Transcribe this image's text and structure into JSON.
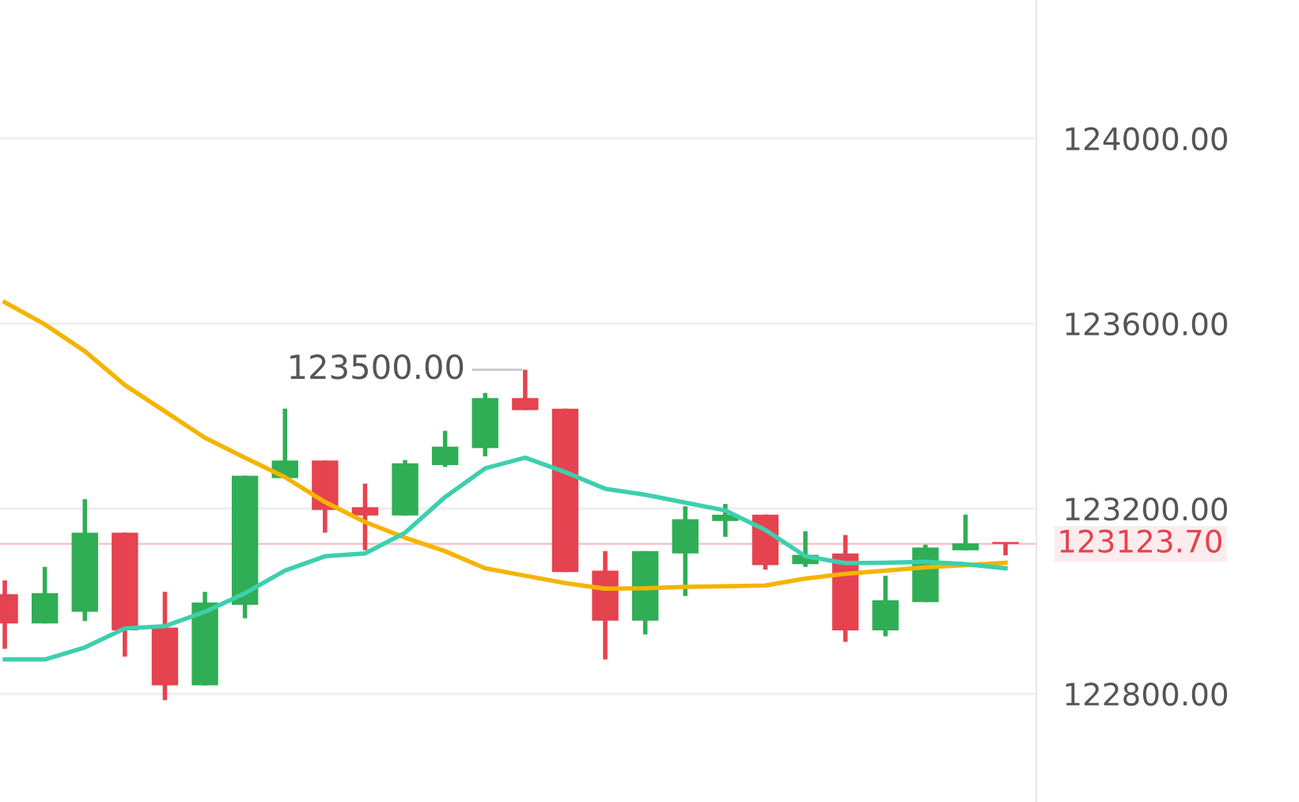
{
  "chart_data": {
    "type": "candlestick",
    "categories": [
      null,
      null,
      null,
      null,
      null,
      null,
      null,
      null,
      null,
      null,
      null,
      null,
      null,
      null,
      null,
      null,
      null,
      null,
      null,
      null,
      null,
      null,
      null,
      null,
      null,
      null
    ],
    "ohlc": [
      [
        123015,
        123045,
        122897,
        122952
      ],
      [
        122952,
        123074,
        122952,
        123017
      ],
      [
        122977,
        123220,
        122957,
        123148
      ],
      [
        123148,
        123148,
        122880,
        122937
      ],
      [
        122943,
        123020,
        122786,
        122818
      ],
      [
        122818,
        123020,
        122818,
        122997
      ],
      [
        122992,
        123271,
        122963,
        123271
      ],
      [
        123266,
        123416,
        123266,
        123304
      ],
      [
        123304,
        123304,
        123148,
        123197
      ],
      [
        123203,
        123254,
        123110,
        123185
      ],
      [
        123185,
        123305,
        123185,
        123298
      ],
      [
        123294,
        123368,
        123290,
        123334
      ],
      [
        123331,
        123450,
        123313,
        123439
      ],
      [
        123439,
        123500,
        123413,
        123413
      ],
      [
        123416,
        123416,
        123063,
        123063
      ],
      [
        123066,
        123108,
        122874,
        122958
      ],
      [
        122958,
        123108,
        122928,
        123108
      ],
      [
        123103,
        123205,
        123011,
        123177
      ],
      [
        123173,
        123210,
        123139,
        123187
      ],
      [
        123187,
        123187,
        123068,
        123078
      ],
      [
        123080,
        123151,
        123074,
        123100
      ],
      [
        123103,
        123143,
        122912,
        122937
      ],
      [
        122937,
        123055,
        122924,
        123002
      ],
      [
        122998,
        123122,
        122998,
        123116
      ],
      [
        123110,
        123187,
        123110,
        123125
      ],
      [
        123126,
        123126,
        123099,
        123123.7
      ]
    ],
    "colors": [
      "#e5434f",
      "#2fae55",
      "#2fae55",
      "#e5434f",
      "#e5434f",
      "#2fae55",
      "#2fae55",
      "#2fae55",
      "#e5434f",
      "#e5434f",
      "#2fae55",
      "#2fae55",
      "#2fae55",
      "#e5434f",
      "#e5434f",
      "#e5434f",
      "#2fae55",
      "#2fae55",
      "#2fae55",
      "#e5434f",
      "#2fae55",
      "#e5434f",
      "#2fae55",
      "#2fae55",
      "#2fae55",
      "#e5434f"
    ],
    "series": [
      {
        "type": "line",
        "color": "#f5b400",
        "values": [
          123646,
          123598,
          123540,
          123467,
          123410,
          123353,
          123310,
          123268,
          123214,
          123171,
          123137,
          123108,
          123071,
          123055,
          123039,
          123027,
          123028,
          123031,
          123032,
          123034,
          123049,
          123059,
          123066,
          123073,
          123078,
          123083
        ]
      },
      {
        "type": "line",
        "color": "#3ecfae",
        "values": [
          122874,
          122874,
          122900,
          122941,
          122946,
          122977,
          123017,
          123066,
          123097,
          123103,
          123148,
          123225,
          123287,
          123310,
          123279,
          123243,
          123230,
          123213,
          123196,
          123154,
          123097,
          123082,
          123083,
          123085,
          123080,
          123071
        ]
      }
    ],
    "ylim": [
      122566,
      124299
    ],
    "yticks": [
      {
        "value": 122800,
        "label": "122800.00"
      },
      {
        "value": 123200,
        "label": "123200.00"
      },
      {
        "value": 123600,
        "label": "123600.00"
      },
      {
        "value": 124000,
        "label": "124000.00"
      }
    ],
    "grid": "y",
    "marker": "none",
    "ref_lines": [
      {
        "axis": "y",
        "value": 123123.7,
        "label": "123123.70",
        "color": "#e5434f"
      }
    ],
    "annotations": [
      "123500.00"
    ]
  }
}
